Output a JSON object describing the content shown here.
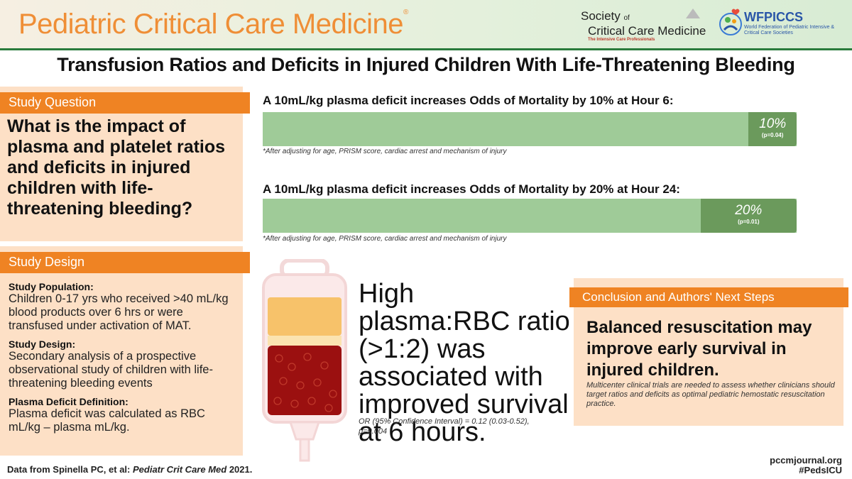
{
  "header": {
    "journal_title": "Pediatric Critical Care Medicine",
    "journal_mark": "®",
    "sccm": {
      "line1_a": "Society",
      "line1_b": "of",
      "line2": "Critical Care Medicine",
      "tagline": "The Intensive Care Professionals"
    },
    "wfpiccs": {
      "name": "WFPICCS",
      "subtitle": "World Federation of Pediatric Intensive & Critical Care Societies"
    }
  },
  "title": "Transfusion Ratios and Deficits in Injured Children With Life-Threatening Bleeding",
  "study_question": {
    "heading": "Study Question",
    "text": "What is the impact of plasma and platelet ratios and deficits in injured children with life-threatening bleeding?"
  },
  "study_design": {
    "heading": "Study Design",
    "sections": [
      {
        "label": "Study Population:",
        "text": "Children 0-17 yrs who received >40 mL/kg blood products over 6 hrs or were transfused under activation of MAT."
      },
      {
        "label": "Study Design:",
        "text": "Secondary analysis of a prospective observational study of children with life-threatening bleeding events"
      },
      {
        "label": "Plasma Deficit Definition:",
        "text": "Plasma deficit was calculated as RBC mL/kg – plasma mL/kg."
      }
    ]
  },
  "findings": [
    {
      "title": "A 10mL/kg plasma deficit increases Odds of Mortality by 10% at Hour 6:",
      "value_label": "10%",
      "p_value": "(p=0.04)",
      "percent": 10,
      "note": "*After adjusting for age, PRISM score, cardiac arrest and mechanism of injury"
    },
    {
      "title": "A 10mL/kg plasma deficit increases Odds of Mortality by 20% at Hour 24:",
      "value_label": "20%",
      "p_value": "(p=0.01)",
      "percent": 20,
      "note": "*After adjusting for age, PRISM score, cardiac arrest and mechanism of injury"
    }
  ],
  "ratio_finding": {
    "text": "High plasma:RBC ratio (>1:2) was associated with improved survival at 6 hours.",
    "or_text": "OR (95% Confidence Interval) = 0.12 (0.03-0.52), p=0.004"
  },
  "conclusion": {
    "heading": "Conclusion and Authors' Next Steps",
    "main": "Balanced resuscitation may improve early survival in injured children.",
    "sub": "Multicenter clinical trials are needed to assess whether clinicians should target ratios and deficits as optimal pediatric hemostatic resuscitation practice."
  },
  "footer": {
    "citation_prefix": "Data from Spinella PC, et al: ",
    "citation_journal": "Pediatr Crit Care Med",
    "citation_year": " 2021.",
    "site": "pccmjournal.org",
    "hashtag": "#PedsICU"
  },
  "colors": {
    "orange": "#ef8323",
    "peach": "#fde0c6",
    "bar_light": "#9fcb98",
    "bar_dark": "#6b9a5c",
    "green_rule": "#2a7b3c"
  },
  "icons": [
    "sccm-triangle-logo",
    "wfpiccs-logo",
    "blood-bag-icon"
  ]
}
